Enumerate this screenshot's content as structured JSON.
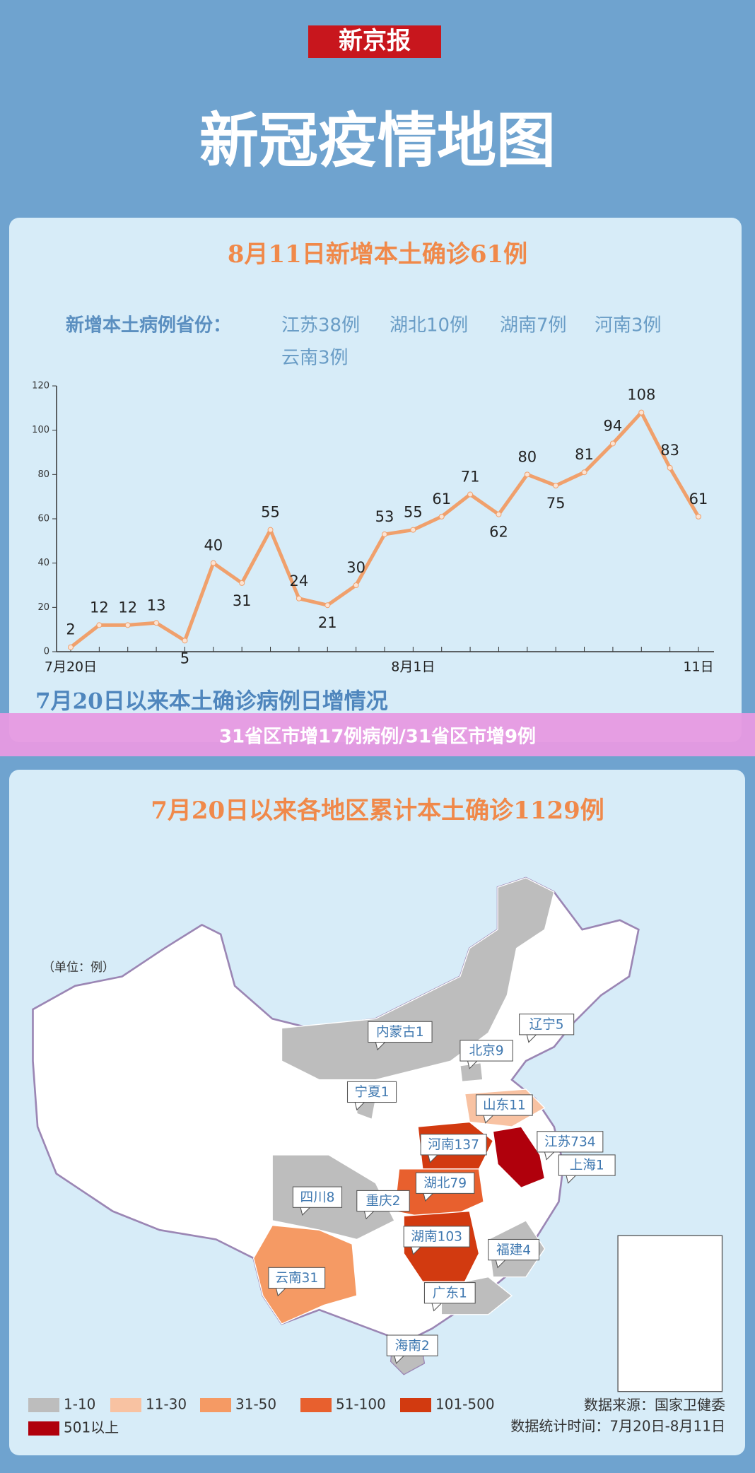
{
  "header": {
    "logo": "新京报",
    "title": "新冠疫情地图"
  },
  "daily": {
    "headline": "8月11日新增本土确诊61例",
    "provinces_label": "新增本土病例省份：",
    "provinces": [
      "江苏38例",
      "湖北10例",
      "湖南7例",
      "河南3例",
      "云南3例"
    ],
    "caption": "7月20日以来本土确诊病例日增情况"
  },
  "chart_data": {
    "type": "line",
    "categories": [
      "7月20日",
      null,
      null,
      null,
      null,
      null,
      null,
      null,
      null,
      null,
      null,
      null,
      "8月1日",
      null,
      null,
      null,
      null,
      null,
      null,
      null,
      null,
      null,
      "11日"
    ],
    "series": [
      {
        "color": "#f0a06c",
        "values": [
          2,
          12,
          12,
          13,
          5,
          40,
          31,
          55,
          24,
          21,
          30,
          53,
          55,
          61,
          71,
          62,
          80,
          75,
          81,
          94,
          108,
          83,
          61
        ]
      }
    ],
    "ylim": [
      0,
      120
    ],
    "yticks": [
      0,
      20,
      40,
      60,
      80,
      100,
      120
    ],
    "grid": false
  },
  "banner": "31省区市增17例病例/31省区市增9例",
  "map": {
    "headline": "7月20日以来各地区累计本土确诊1129例",
    "unit": "（单位：例）",
    "regions": [
      "内蒙古1",
      "北京9",
      "辽宁5",
      "宁夏1",
      "山东11",
      "河南137",
      "江苏734",
      "上海1",
      "湖北79",
      "四川8",
      "重庆2",
      "湖南103",
      "福建4",
      "云南31",
      "广东1",
      "海南2"
    ],
    "legend": [
      {
        "label": "1-10",
        "color": "#bdbdbd"
      },
      {
        "label": "11-30",
        "color": "#f8c2a2"
      },
      {
        "label": "31-50",
        "color": "#f59a64"
      },
      {
        "label": "51-100",
        "color": "#e8602e"
      },
      {
        "label": "101-500",
        "color": "#d23a10"
      },
      {
        "label": "501以上",
        "color": "#b0000c"
      }
    ],
    "source": "数据来源：国家卫健委",
    "period": "数据统计时间：7月20日-8月11日"
  }
}
